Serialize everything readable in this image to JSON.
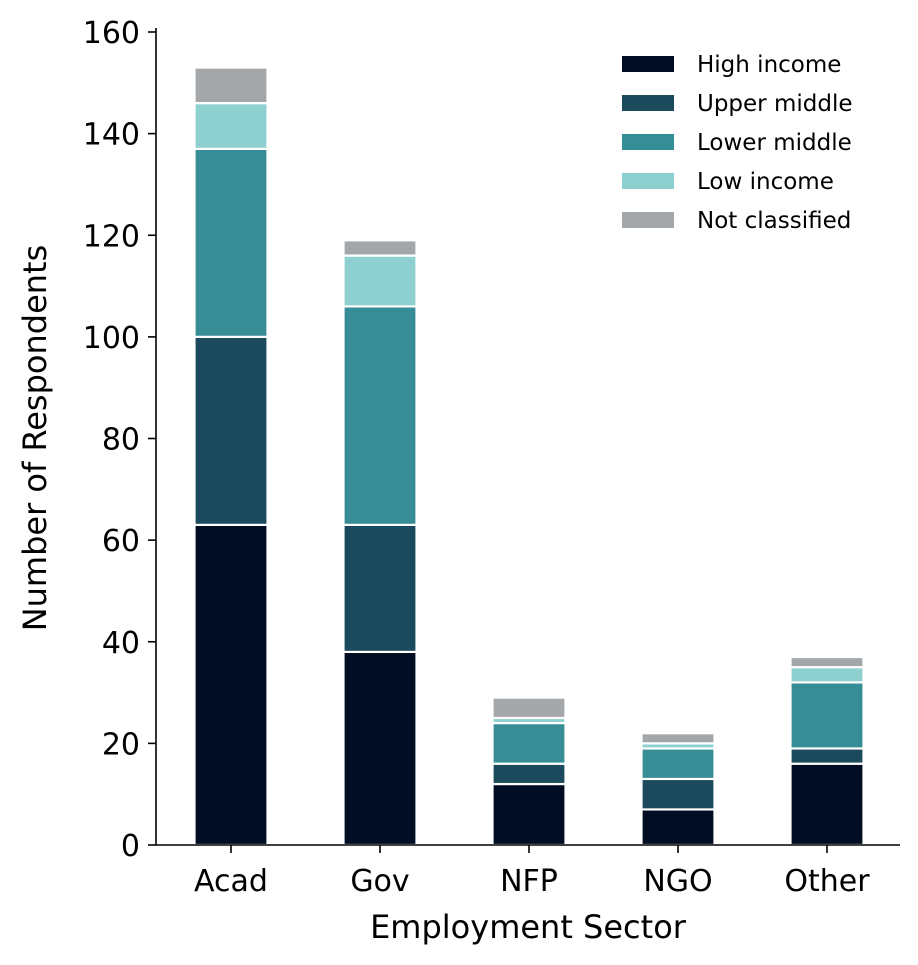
{
  "chart_data": {
    "type": "bar",
    "stacked": true,
    "title": "",
    "xlabel": "Employment Sector",
    "ylabel": "Number of Respondents",
    "categories": [
      "Acad",
      "Gov",
      "NFP",
      "NGO",
      "Other"
    ],
    "ylim": [
      0,
      160
    ],
    "yticks": [
      0,
      20,
      40,
      60,
      80,
      100,
      120,
      140,
      160
    ],
    "grid": false,
    "legend_position": "top-right",
    "series": [
      {
        "name": "High income",
        "color": "#000d22",
        "values": [
          63,
          38,
          12,
          7,
          16
        ]
      },
      {
        "name": "Upper middle",
        "color": "#1a4a5b",
        "values": [
          37,
          25,
          4,
          6,
          3
        ]
      },
      {
        "name": "Lower middle",
        "color": "#378d95",
        "values": [
          37,
          43,
          8,
          6,
          13
        ]
      },
      {
        "name": "Low income",
        "color": "#8ecfcf",
        "values": [
          9,
          10,
          1,
          1,
          3
        ]
      },
      {
        "name": "Not classified",
        "color": "#a4a7aa",
        "values": [
          7,
          3,
          4,
          2,
          2
        ]
      }
    ]
  }
}
